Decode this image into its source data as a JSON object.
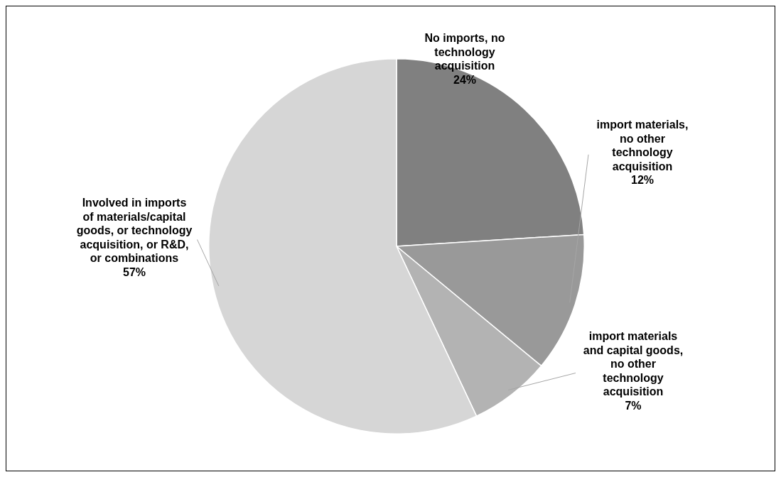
{
  "chart_data": {
    "type": "pie",
    "categories": [
      "No imports, no technology acquisition",
      "import materials, no other technology acquisition",
      "import materials and capital goods, no other technology acquisition",
      "Involved in imports of materials/capital goods, or technology acquisition, or R&D, or combinations"
    ],
    "values": [
      24,
      12,
      7,
      57
    ],
    "colors": [
      "#808080",
      "#999999",
      "#b3b3b3",
      "#d6d6d6"
    ],
    "value_labels": [
      "24%",
      "12%",
      "7%",
      "57%"
    ],
    "legend": false
  }
}
